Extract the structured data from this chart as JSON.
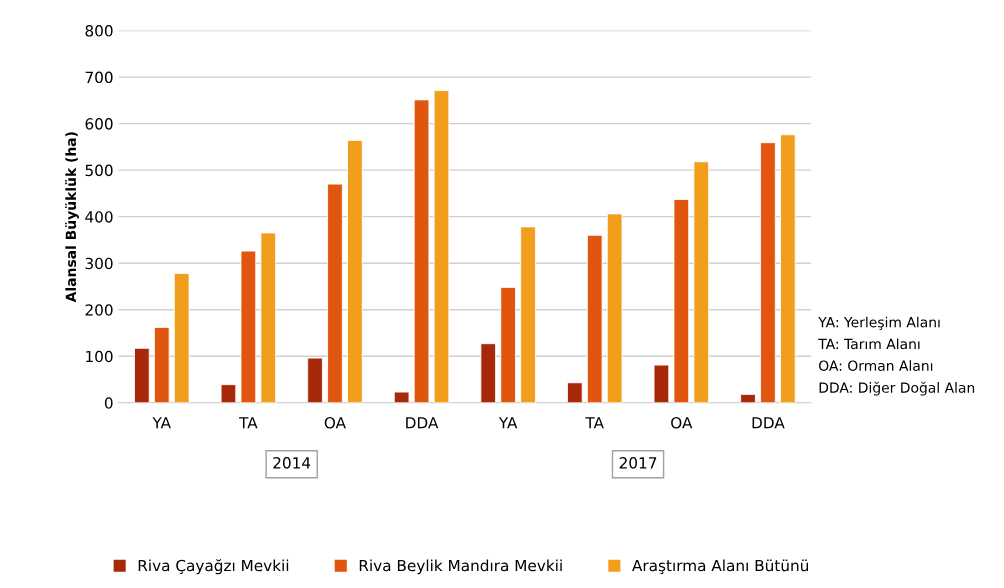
{
  "chart_data": {
    "type": "bar",
    "ylabel": "Alansal Büyüklük (ha)",
    "categories": [
      "YA",
      "TA",
      "OA",
      "DDA",
      "YA",
      "TA",
      "OA",
      "DDA"
    ],
    "series": [
      {
        "name": "Riva Çayağzı Mevkii",
        "color": "#a8290a",
        "values": [
          117,
          39,
          96,
          23,
          127,
          43,
          81,
          18
        ]
      },
      {
        "name": "Riva Beylik Mandıra Mevkii",
        "color": "#e0560e",
        "values": [
          162,
          326,
          470,
          651,
          248,
          360,
          437,
          559
        ]
      },
      {
        "name": "Araştırma Alanı Bütünü",
        "color": "#f09e1c",
        "values": [
          278,
          365,
          564,
          671,
          378,
          406,
          518,
          576
        ]
      }
    ],
    "ylim": [
      0,
      800
    ],
    "yticks": [
      0,
      100,
      200,
      300,
      400,
      500,
      600,
      700,
      800
    ],
    "grid": "y",
    "legend": "bottom",
    "annotations": [
      "2014",
      "2017",
      "YA: Yerleşim Alanı",
      "TA: Tarım Alanı",
      "OA: Orman Alanı",
      "DDA: Diğer Doğal Alan"
    ]
  }
}
